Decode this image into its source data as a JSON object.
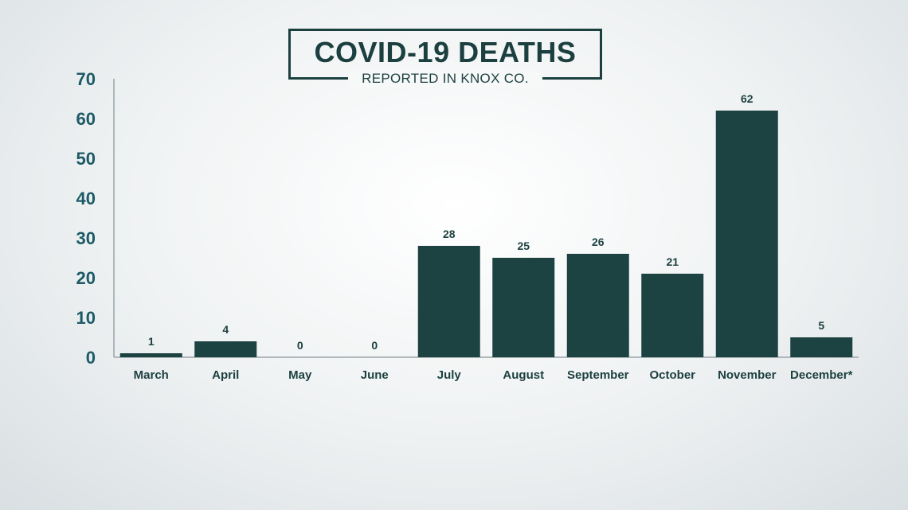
{
  "chart_data": {
    "type": "bar",
    "title": "COVID-19 DEATHS",
    "subtitle": "REPORTED IN KNOX CO.",
    "categories": [
      "March",
      "April",
      "May",
      "June",
      "July",
      "August",
      "September",
      "October",
      "November",
      "December*"
    ],
    "values": [
      1,
      4,
      0,
      0,
      28,
      25,
      26,
      21,
      62,
      5
    ],
    "yticks": [
      0,
      10,
      20,
      30,
      40,
      50,
      60,
      70
    ],
    "ylim": [
      0,
      70
    ],
    "grid": false,
    "legend": "none",
    "colors": {
      "bar": "#1c4242",
      "title": "#1c3f40",
      "ytick": "#1c5a66"
    }
  }
}
